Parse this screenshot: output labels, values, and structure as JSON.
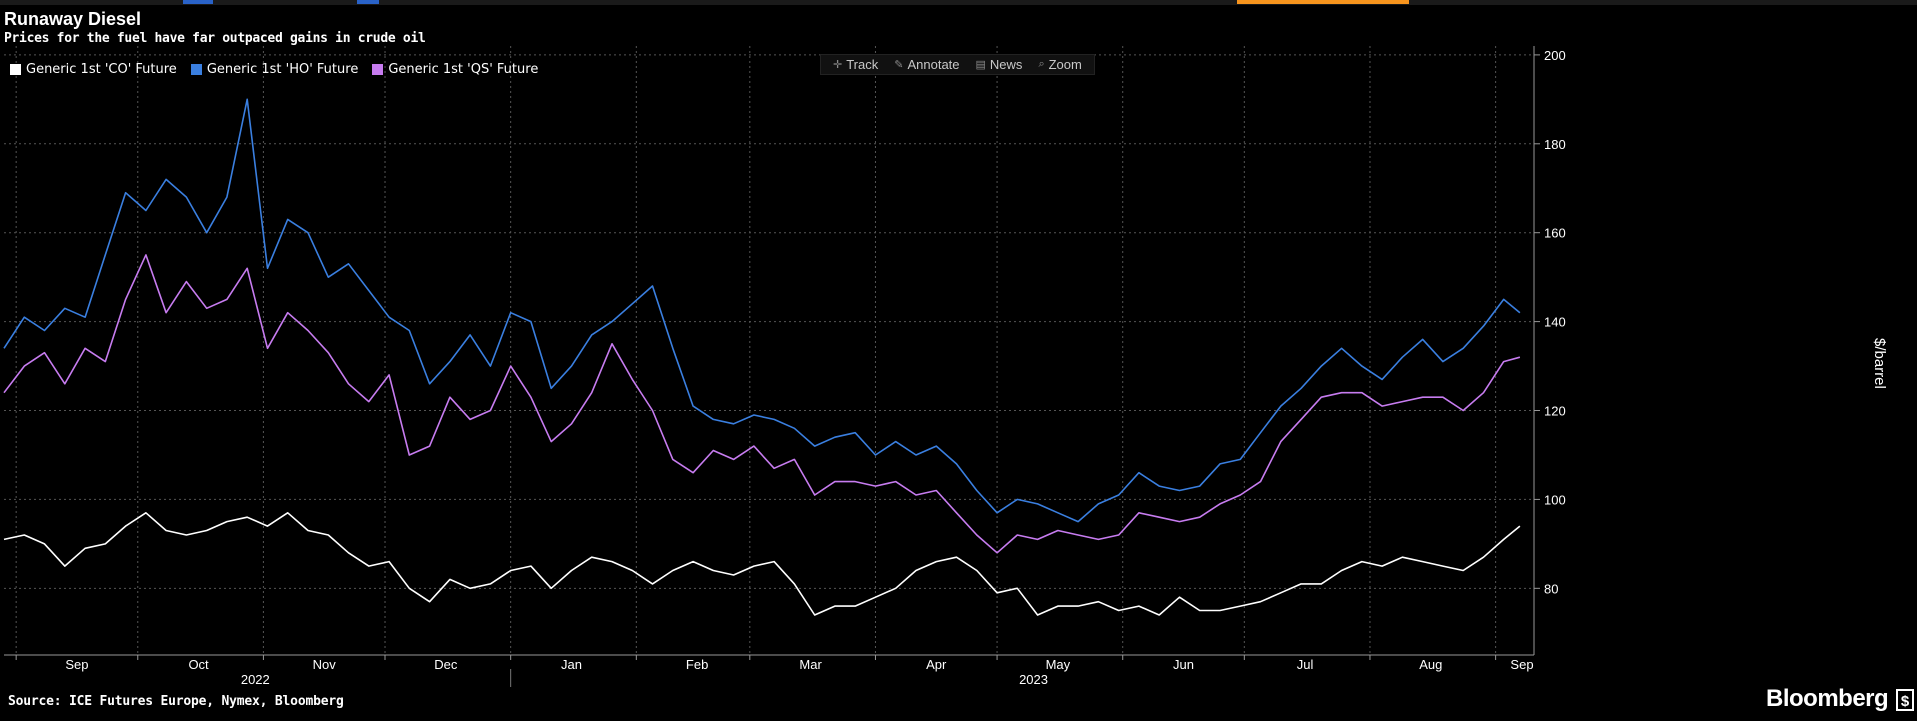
{
  "title": "Runaway Diesel",
  "subtitle": "Prices for the fuel have far outpaced gains in crude oil",
  "source": "Source: ICE Futures Europe, Nymex, Bloomberg",
  "brand": "Bloomberg",
  "brand_mark": "$",
  "toolbar": {
    "track": "Track",
    "annotate": "Annotate",
    "news": "News",
    "zoom": "Zoom"
  },
  "colors": {
    "background": "#000000",
    "co": "#ffffff",
    "ho": "#3a7fe0",
    "qs": "#c77cf0",
    "grid": "#555555",
    "accent_bar": "#f7941d"
  },
  "chart_data": {
    "type": "line",
    "title": "Runaway Diesel",
    "subtitle": "Prices for the fuel have far outpaced gains in crude oil",
    "ylabel": "$/barrel",
    "ylim": [
      65,
      202
    ],
    "yticks": [
      80,
      100,
      120,
      140,
      160,
      180,
      200
    ],
    "xlim": [
      "2022-08-29",
      "2023-09-08"
    ],
    "month_ticks": [
      {
        "label": "Sep",
        "date": "2022-09-16"
      },
      {
        "label": "Oct",
        "date": "2022-10-16"
      },
      {
        "label": "Nov",
        "date": "2022-11-16"
      },
      {
        "label": "Dec",
        "date": "2022-12-16"
      },
      {
        "label": "Jan",
        "date": "2023-01-16"
      },
      {
        "label": "Feb",
        "date": "2023-02-16"
      },
      {
        "label": "Mar",
        "date": "2023-03-16"
      },
      {
        "label": "Apr",
        "date": "2023-04-16"
      },
      {
        "label": "May",
        "date": "2023-05-16"
      },
      {
        "label": "Jun",
        "date": "2023-06-16"
      },
      {
        "label": "Jul",
        "date": "2023-07-16"
      },
      {
        "label": "Aug",
        "date": "2023-08-16"
      },
      {
        "label": "Sep",
        "date": "2023-09-16"
      }
    ],
    "year_labels": [
      {
        "label": "2022",
        "date": "2022-10-30"
      },
      {
        "label": "2023",
        "date": "2023-05-10"
      }
    ],
    "grid": true,
    "legend_position": "top-left",
    "series": [
      {
        "name": "Generic 1st 'CO' Future",
        "color": "#ffffff",
        "x": [
          "2022-08-29",
          "2022-09-03",
          "2022-09-08",
          "2022-09-13",
          "2022-09-18",
          "2022-09-23",
          "2022-09-28",
          "2022-10-03",
          "2022-10-08",
          "2022-10-13",
          "2022-10-18",
          "2022-10-23",
          "2022-10-28",
          "2022-11-02",
          "2022-11-07",
          "2022-11-12",
          "2022-11-17",
          "2022-11-22",
          "2022-11-27",
          "2022-12-02",
          "2022-12-07",
          "2022-12-12",
          "2022-12-17",
          "2022-12-22",
          "2022-12-27",
          "2023-01-01",
          "2023-01-06",
          "2023-01-11",
          "2023-01-16",
          "2023-01-21",
          "2023-01-26",
          "2023-01-31",
          "2023-02-05",
          "2023-02-10",
          "2023-02-15",
          "2023-02-20",
          "2023-02-25",
          "2023-03-02",
          "2023-03-07",
          "2023-03-12",
          "2023-03-17",
          "2023-03-22",
          "2023-03-27",
          "2023-04-01",
          "2023-04-06",
          "2023-04-11",
          "2023-04-16",
          "2023-04-21",
          "2023-04-26",
          "2023-05-01",
          "2023-05-06",
          "2023-05-11",
          "2023-05-16",
          "2023-05-21",
          "2023-05-26",
          "2023-05-31",
          "2023-06-05",
          "2023-06-10",
          "2023-06-15",
          "2023-06-20",
          "2023-06-25",
          "2023-06-30",
          "2023-07-05",
          "2023-07-10",
          "2023-07-15",
          "2023-07-20",
          "2023-07-25",
          "2023-07-30",
          "2023-08-04",
          "2023-08-09",
          "2023-08-14",
          "2023-08-19",
          "2023-08-24",
          "2023-08-29",
          "2023-09-03",
          "2023-09-07"
        ],
        "values": [
          91,
          92,
          90,
          85,
          89,
          90,
          94,
          97,
          93,
          92,
          93,
          95,
          96,
          94,
          97,
          93,
          92,
          88,
          85,
          86,
          80,
          77,
          82,
          80,
          81,
          84,
          85,
          80,
          84,
          87,
          86,
          84,
          81,
          84,
          86,
          84,
          83,
          85,
          86,
          81,
          74,
          76,
          76,
          78,
          80,
          84,
          86,
          87,
          84,
          79,
          80,
          74,
          76,
          76,
          77,
          75,
          76,
          74,
          78,
          75,
          75,
          76,
          77,
          79,
          81,
          81,
          84,
          86,
          85,
          87,
          86,
          85,
          84,
          87,
          91,
          94
        ],
        "last": 94
      },
      {
        "name": "Generic 1st 'HO' Future",
        "color": "#3a7fe0",
        "x": [
          "2022-08-29",
          "2022-09-03",
          "2022-09-08",
          "2022-09-13",
          "2022-09-18",
          "2022-09-23",
          "2022-09-28",
          "2022-10-03",
          "2022-10-08",
          "2022-10-13",
          "2022-10-18",
          "2022-10-23",
          "2022-10-28",
          "2022-11-02",
          "2022-11-07",
          "2022-11-12",
          "2022-11-17",
          "2022-11-22",
          "2022-11-27",
          "2022-12-02",
          "2022-12-07",
          "2022-12-12",
          "2022-12-17",
          "2022-12-22",
          "2022-12-27",
          "2023-01-01",
          "2023-01-06",
          "2023-01-11",
          "2023-01-16",
          "2023-01-21",
          "2023-01-26",
          "2023-01-31",
          "2023-02-05",
          "2023-02-10",
          "2023-02-15",
          "2023-02-20",
          "2023-02-25",
          "2023-03-02",
          "2023-03-07",
          "2023-03-12",
          "2023-03-17",
          "2023-03-22",
          "2023-03-27",
          "2023-04-01",
          "2023-04-06",
          "2023-04-11",
          "2023-04-16",
          "2023-04-21",
          "2023-04-26",
          "2023-05-01",
          "2023-05-06",
          "2023-05-11",
          "2023-05-16",
          "2023-05-21",
          "2023-05-26",
          "2023-05-31",
          "2023-06-05",
          "2023-06-10",
          "2023-06-15",
          "2023-06-20",
          "2023-06-25",
          "2023-06-30",
          "2023-07-05",
          "2023-07-10",
          "2023-07-15",
          "2023-07-20",
          "2023-07-25",
          "2023-07-30",
          "2023-08-04",
          "2023-08-09",
          "2023-08-14",
          "2023-08-19",
          "2023-08-24",
          "2023-08-29",
          "2023-09-03",
          "2023-09-07"
        ],
        "values": [
          134,
          141,
          138,
          143,
          141,
          155,
          169,
          165,
          172,
          168,
          160,
          168,
          190,
          152,
          163,
          160,
          150,
          153,
          147,
          141,
          138,
          126,
          131,
          137,
          130,
          142,
          140,
          125,
          130,
          137,
          140,
          144,
          148,
          134,
          121,
          118,
          117,
          119,
          118,
          116,
          112,
          114,
          115,
          110,
          113,
          110,
          112,
          108,
          102,
          97,
          100,
          99,
          97,
          95,
          99,
          101,
          106,
          103,
          102,
          103,
          108,
          109,
          115,
          121,
          125,
          130,
          134,
          130,
          127,
          132,
          136,
          131,
          134,
          139,
          145,
          142
        ],
        "last": 142
      },
      {
        "name": "Generic 1st 'QS' Future",
        "color": "#c77cf0",
        "x": [
          "2022-08-29",
          "2022-09-03",
          "2022-09-08",
          "2022-09-13",
          "2022-09-18",
          "2022-09-23",
          "2022-09-28",
          "2022-10-03",
          "2022-10-08",
          "2022-10-13",
          "2022-10-18",
          "2022-10-23",
          "2022-10-28",
          "2022-11-02",
          "2022-11-07",
          "2022-11-12",
          "2022-11-17",
          "2022-11-22",
          "2022-11-27",
          "2022-12-02",
          "2022-12-07",
          "2022-12-12",
          "2022-12-17",
          "2022-12-22",
          "2022-12-27",
          "2023-01-01",
          "2023-01-06",
          "2023-01-11",
          "2023-01-16",
          "2023-01-21",
          "2023-01-26",
          "2023-01-31",
          "2023-02-05",
          "2023-02-10",
          "2023-02-15",
          "2023-02-20",
          "2023-02-25",
          "2023-03-02",
          "2023-03-07",
          "2023-03-12",
          "2023-03-17",
          "2023-03-22",
          "2023-03-27",
          "2023-04-01",
          "2023-04-06",
          "2023-04-11",
          "2023-04-16",
          "2023-04-21",
          "2023-04-26",
          "2023-05-01",
          "2023-05-06",
          "2023-05-11",
          "2023-05-16",
          "2023-05-21",
          "2023-05-26",
          "2023-05-31",
          "2023-06-05",
          "2023-06-10",
          "2023-06-15",
          "2023-06-20",
          "2023-06-25",
          "2023-06-30",
          "2023-07-05",
          "2023-07-10",
          "2023-07-15",
          "2023-07-20",
          "2023-07-25",
          "2023-07-30",
          "2023-08-04",
          "2023-08-09",
          "2023-08-14",
          "2023-08-19",
          "2023-08-24",
          "2023-08-29",
          "2023-09-03",
          "2023-09-07"
        ],
        "values": [
          124,
          130,
          133,
          126,
          134,
          131,
          145,
          155,
          142,
          149,
          143,
          145,
          152,
          134,
          142,
          138,
          133,
          126,
          122,
          128,
          110,
          112,
          123,
          118,
          120,
          130,
          123,
          113,
          117,
          124,
          135,
          127,
          120,
          109,
          106,
          111,
          109,
          112,
          107,
          109,
          101,
          104,
          104,
          103,
          104,
          101,
          102,
          97,
          92,
          88,
          92,
          91,
          93,
          92,
          91,
          92,
          97,
          96,
          95,
          96,
          99,
          101,
          104,
          113,
          118,
          123,
          124,
          124,
          121,
          122,
          123,
          123,
          120,
          124,
          131,
          132
        ],
        "last": 132
      }
    ]
  }
}
